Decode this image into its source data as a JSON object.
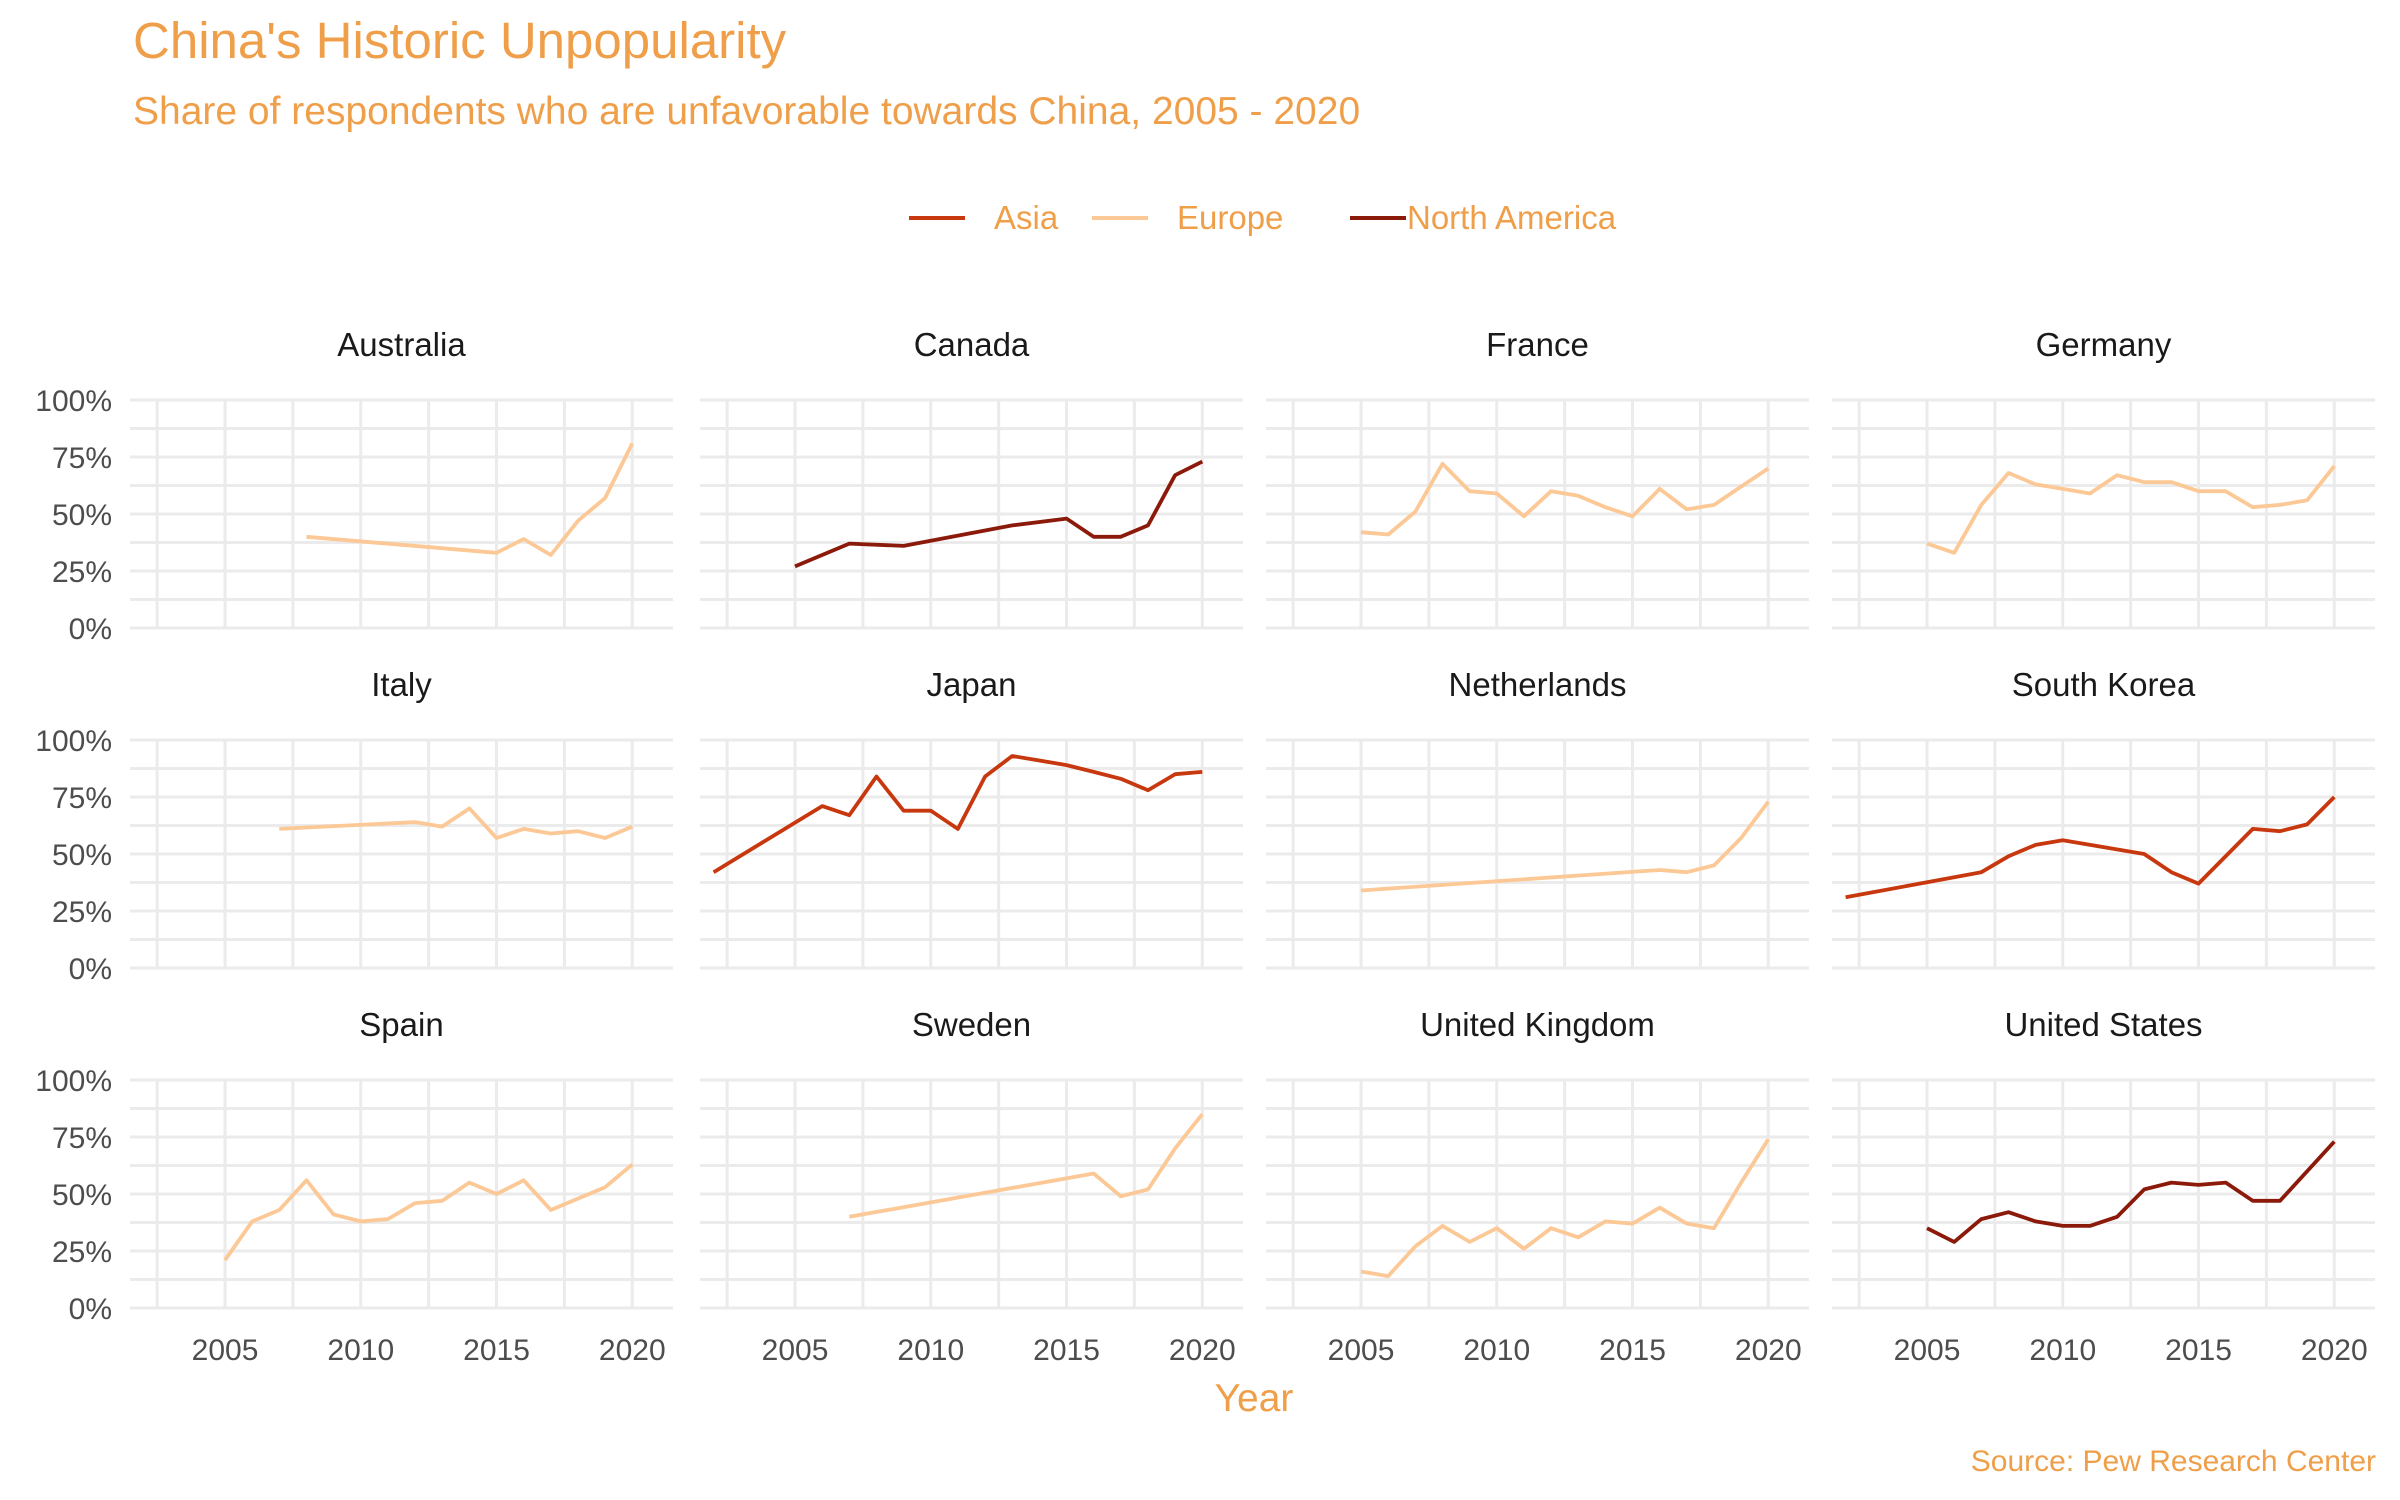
{
  "chart_data": {
    "type": "line",
    "title": "China's Historic Unpopularity",
    "subtitle": "Share of respondents who are unfavorable towards China, 2005 - 2020",
    "xlabel": "Year",
    "ylabel": "",
    "caption": "Source: Pew Research Center",
    "x_ticks": [
      "2005",
      "2010",
      "2015",
      "2020"
    ],
    "y_ticks": [
      "0%",
      "25%",
      "50%",
      "75%",
      "100%"
    ],
    "xlim": [
      2001.5,
      2021.5
    ],
    "ylim": [
      0,
      100
    ],
    "grid": true,
    "legend_position": "top",
    "colors": {
      "title": "#ef9f4a",
      "Asia": "#c8380f",
      "Europe": "#fbc896",
      "North America": "#8b1a0b"
    },
    "legend": [
      "Asia",
      "Europe",
      "North America"
    ],
    "panels": [
      {
        "country": "Australia",
        "region": "Europe",
        "x": [
          2008,
          2015,
          2016,
          2017,
          2018,
          2019,
          2020
        ],
        "y": [
          40,
          33,
          39,
          32,
          47,
          57,
          81
        ]
      },
      {
        "country": "Canada",
        "region": "North America",
        "x": [
          2005,
          2007,
          2009,
          2013,
          2015,
          2016,
          2017,
          2018,
          2019,
          2020
        ],
        "y": [
          27,
          37,
          36,
          45,
          48,
          40,
          40,
          45,
          67,
          73
        ]
      },
      {
        "country": "France",
        "region": "Europe",
        "x": [
          2005,
          2006,
          2007,
          2008,
          2009,
          2010,
          2011,
          2012,
          2013,
          2014,
          2015,
          2016,
          2017,
          2018,
          2019,
          2020
        ],
        "y": [
          42,
          41,
          51,
          72,
          60,
          59,
          49,
          60,
          58,
          53,
          49,
          61,
          52,
          54,
          62,
          70
        ]
      },
      {
        "country": "Germany",
        "region": "Europe",
        "x": [
          2005,
          2006,
          2007,
          2008,
          2009,
          2010,
          2011,
          2012,
          2013,
          2014,
          2015,
          2016,
          2017,
          2018,
          2019,
          2020
        ],
        "y": [
          37,
          33,
          54,
          68,
          63,
          61,
          59,
          67,
          64,
          64,
          60,
          60,
          53,
          54,
          56,
          71
        ]
      },
      {
        "country": "Italy",
        "region": "Europe",
        "x": [
          2007,
          2012,
          2013,
          2014,
          2015,
          2016,
          2017,
          2018,
          2019,
          2020
        ],
        "y": [
          61,
          64,
          62,
          70,
          57,
          61,
          59,
          60,
          57,
          62
        ]
      },
      {
        "country": "Japan",
        "region": "Asia",
        "x": [
          2002,
          2006,
          2007,
          2008,
          2009,
          2010,
          2011,
          2012,
          2013,
          2014,
          2015,
          2016,
          2017,
          2018,
          2019,
          2020
        ],
        "y": [
          42,
          71,
          67,
          84,
          69,
          69,
          61,
          84,
          93,
          91,
          89,
          86,
          83,
          78,
          85,
          86
        ]
      },
      {
        "country": "Netherlands",
        "region": "Europe",
        "x": [
          2005,
          2016,
          2017,
          2018,
          2019,
          2020
        ],
        "y": [
          34,
          43,
          42,
          45,
          57,
          73
        ]
      },
      {
        "country": "South Korea",
        "region": "Asia",
        "x": [
          2002,
          2007,
          2008,
          2009,
          2010,
          2013,
          2014,
          2015,
          2017,
          2018,
          2019,
          2020
        ],
        "y": [
          31,
          42,
          49,
          54,
          56,
          50,
          42,
          37,
          61,
          60,
          63,
          75
        ]
      },
      {
        "country": "Spain",
        "region": "Europe",
        "x": [
          2005,
          2006,
          2007,
          2008,
          2009,
          2010,
          2011,
          2012,
          2013,
          2014,
          2015,
          2016,
          2017,
          2019,
          2020
        ],
        "y": [
          21,
          38,
          43,
          56,
          41,
          38,
          39,
          46,
          47,
          55,
          50,
          56,
          43,
          53,
          63
        ]
      },
      {
        "country": "Sweden",
        "region": "Europe",
        "x": [
          2007,
          2016,
          2017,
          2018,
          2019,
          2020
        ],
        "y": [
          40,
          59,
          49,
          52,
          70,
          85
        ]
      },
      {
        "country": "United Kingdom",
        "region": "Europe",
        "x": [
          2005,
          2006,
          2007,
          2008,
          2009,
          2010,
          2011,
          2012,
          2013,
          2014,
          2015,
          2016,
          2017,
          2018,
          2019,
          2020
        ],
        "y": [
          16,
          14,
          27,
          36,
          29,
          35,
          26,
          35,
          31,
          38,
          37,
          44,
          37,
          35,
          55,
          74
        ]
      },
      {
        "country": "United States",
        "region": "North America",
        "x": [
          2005,
          2006,
          2007,
          2008,
          2009,
          2010,
          2011,
          2012,
          2013,
          2014,
          2015,
          2016,
          2017,
          2018,
          2020
        ],
        "y": [
          35,
          29,
          39,
          42,
          38,
          36,
          36,
          40,
          52,
          55,
          54,
          55,
          47,
          47,
          73
        ]
      }
    ]
  }
}
